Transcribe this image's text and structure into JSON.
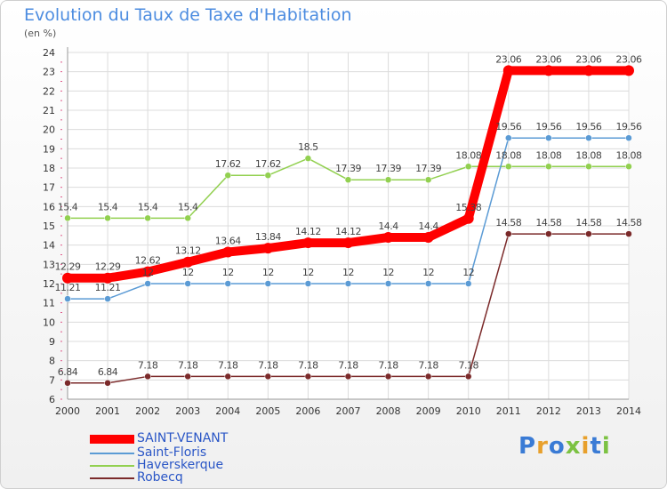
{
  "title": "Evolution du Taux de Taxe d'Habitation",
  "subtitle": "(en %)",
  "logo_text": "Proxiti",
  "chart_data": {
    "type": "line",
    "x": [
      2000,
      2001,
      2002,
      2003,
      2004,
      2005,
      2006,
      2007,
      2008,
      2009,
      2010,
      2011,
      2012,
      2013,
      2014
    ],
    "ylim": [
      6,
      24
    ],
    "yticks": [
      6,
      7,
      8,
      9,
      10,
      11,
      12,
      13,
      14,
      15,
      16,
      17,
      18,
      19,
      20,
      21,
      22,
      23,
      24
    ],
    "grid": true,
    "legend_position": "bottom-left",
    "series": [
      {
        "name": "SAINT-VENANT",
        "color": "#ff0000",
        "values": [
          12.29,
          12.29,
          12.62,
          13.12,
          13.64,
          13.84,
          14.12,
          14.12,
          14.4,
          14.4,
          15.38,
          23.06,
          23.06,
          23.06,
          23.06
        ],
        "labels": [
          "12.29",
          "12.29",
          "12.62",
          "13.12",
          "13.64",
          "13.84",
          "14.12",
          "14.12",
          "14.4",
          "14.4",
          "15.38",
          "23.06",
          "23.06",
          "23.06",
          "23.06"
        ]
      },
      {
        "name": "Saint-Floris",
        "color": "#5b9bd5",
        "values": [
          11.21,
          11.21,
          12,
          12,
          12,
          12,
          12,
          12,
          12,
          12,
          12,
          19.56,
          19.56,
          19.56,
          19.56
        ],
        "labels": [
          "11.21",
          "11.21",
          "12",
          "12",
          "12",
          "12",
          "12",
          "12",
          "12",
          "12",
          "12",
          "19.56",
          "19.56",
          "19.56",
          "19.56"
        ]
      },
      {
        "name": "Haverskerque",
        "color": "#92d050",
        "values": [
          15.4,
          15.4,
          15.4,
          15.4,
          17.62,
          17.62,
          18.5,
          17.39,
          17.39,
          17.39,
          18.08,
          18.08,
          18.08,
          18.08,
          18.08
        ],
        "labels": [
          "15.4",
          "15.4",
          "15.4",
          "15.4",
          "17.62",
          "17.62",
          "18.5",
          "17.39",
          "17.39",
          "17.39",
          "18.08",
          "18.08",
          "18.08",
          "18.08",
          "18.08"
        ]
      },
      {
        "name": "Robecq",
        "color": "#7b2a2a",
        "values": [
          6.84,
          6.84,
          7.18,
          7.18,
          7.18,
          7.18,
          7.18,
          7.18,
          7.18,
          7.18,
          7.18,
          14.58,
          14.58,
          14.58,
          14.58
        ],
        "labels": [
          "6.84",
          "6.84",
          "7.18",
          "7.18",
          "7.18",
          "7.18",
          "7.18",
          "7.18",
          "7.18",
          "7.18",
          "7.18",
          "14.58",
          "14.58",
          "14.58",
          "14.58"
        ]
      }
    ]
  }
}
